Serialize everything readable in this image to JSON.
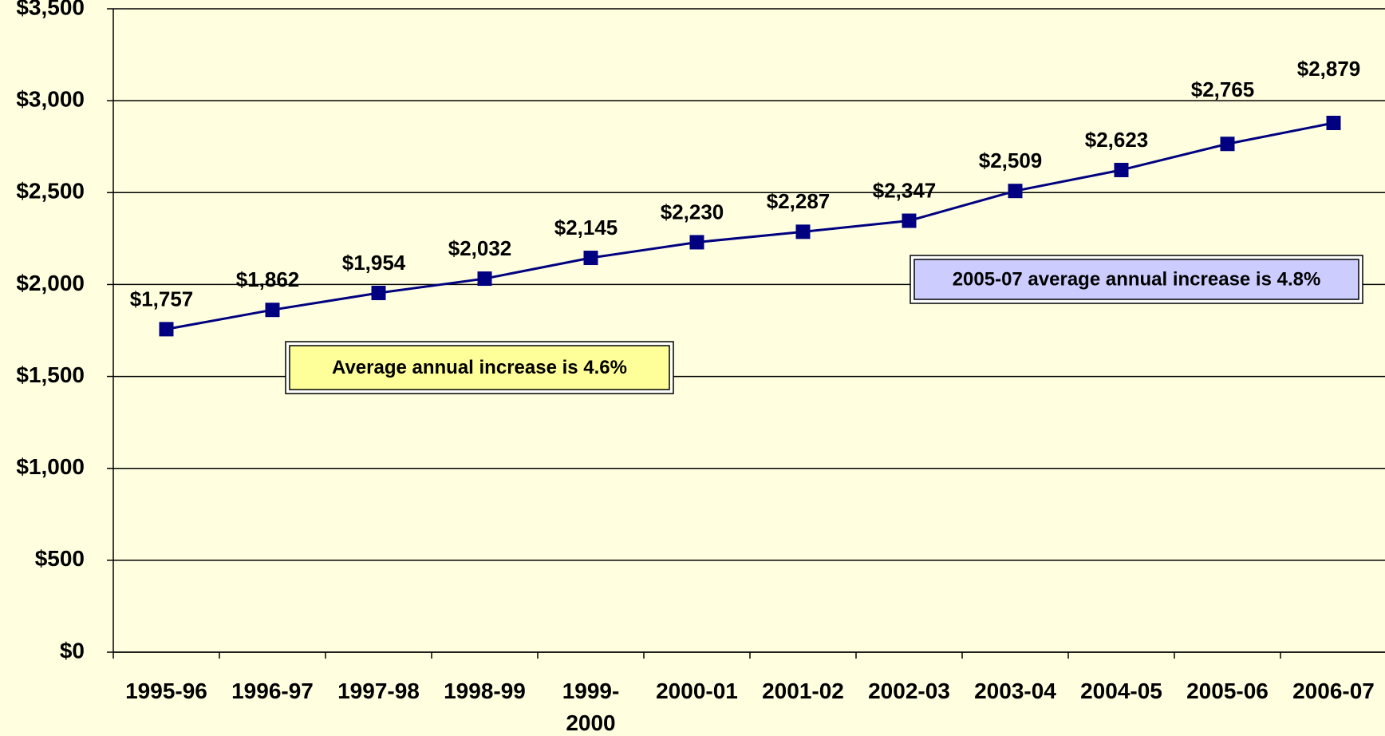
{
  "chart_data": {
    "type": "line",
    "categories": [
      "1995-96",
      "1996-97",
      "1997-98",
      "1998-99",
      "1999-2000",
      "2000-01",
      "2001-02",
      "2002-03",
      "2003-04",
      "2004-05",
      "2005-06",
      "2006-07"
    ],
    "series": [
      {
        "color": "#000080",
        "values": [
          1757,
          1862,
          1954,
          2032,
          2145,
          2230,
          2287,
          2347,
          2509,
          2623,
          2765,
          2879
        ],
        "value_labels": [
          "$1,757",
          "$1,862",
          "$1,954",
          "$2,032",
          "$2,145",
          "$2,230",
          "$2,287",
          "$2,347",
          "$2,509",
          "$2,623",
          "$2,765",
          "$2,879"
        ]
      }
    ],
    "ylim": [
      0,
      3500
    ],
    "yticks": [
      {
        "value": 0,
        "label": "$0"
      },
      {
        "value": 500,
        "label": "$500"
      },
      {
        "value": 1000,
        "label": "$1,000"
      },
      {
        "value": 1500,
        "label": "$1,500"
      },
      {
        "value": 2000,
        "label": "$2,000"
      },
      {
        "value": 2500,
        "label": "$2,500"
      },
      {
        "value": 3000,
        "label": "$3,000"
      },
      {
        "value": 3500,
        "label": "$3,500"
      }
    ],
    "grid": true,
    "annotations": [
      {
        "text": "Average annual increase is 4.6%",
        "color": "#FFFF99"
      },
      {
        "text": "2005-07 average annual increase is 4.8%",
        "color": "#CCCCFF"
      }
    ]
  }
}
